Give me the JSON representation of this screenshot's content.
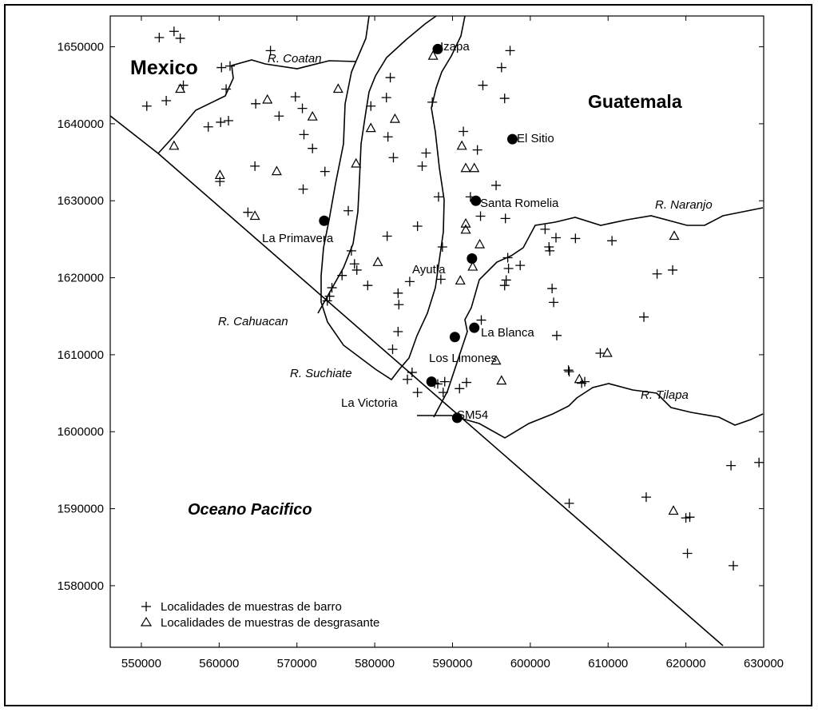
{
  "map": {
    "x_range": [
      546000,
      630000
    ],
    "y_range": [
      1572000,
      1654000
    ],
    "x_ticks": [
      "550000",
      "560000",
      "570000",
      "580000",
      "590000",
      "600000",
      "610000",
      "620000",
      "630000"
    ],
    "y_ticks": [
      "1580000",
      "1590000",
      "1600000",
      "1610000",
      "1620000",
      "1630000",
      "1640000",
      "1650000"
    ],
    "countries": [
      {
        "label": "Mexico"
      },
      {
        "label": "Guatemala"
      }
    ],
    "ocean_label": "Oceano Pacifico",
    "rivers": [
      {
        "label": "R. Coatan"
      },
      {
        "label": "R. Naranjo"
      },
      {
        "label": "R. Cahuacan"
      },
      {
        "label": "R. Suchiate"
      },
      {
        "label": "R. Tilapa"
      }
    ],
    "sites": [
      {
        "label": "Izapa",
        "x": 588100,
        "y": 1649700
      },
      {
        "label": "El Sitio",
        "x": 597700,
        "y": 1638000
      },
      {
        "label": "Santa Romelia",
        "x": 593000,
        "y": 1630000
      },
      {
        "label": "La Primavera",
        "x": 573500,
        "y": 1627400
      },
      {
        "label": "Ayutla",
        "x": 592500,
        "y": 1622500
      },
      {
        "label": "La Blanca",
        "x": 592800,
        "y": 1613500
      },
      {
        "label": "Los Limones",
        "x": 590300,
        "y": 1612300
      },
      {
        "label": "La Victoria",
        "x": 587300,
        "y": 1606500
      },
      {
        "label": "SM54",
        "x": 590600,
        "y": 1601800
      }
    ],
    "legend": [
      {
        "symbol": "plus",
        "label": "Localidades de muestras de barro"
      },
      {
        "symbol": "triangle",
        "label": "Localidades de muestras de desgrasante"
      }
    ]
  }
}
